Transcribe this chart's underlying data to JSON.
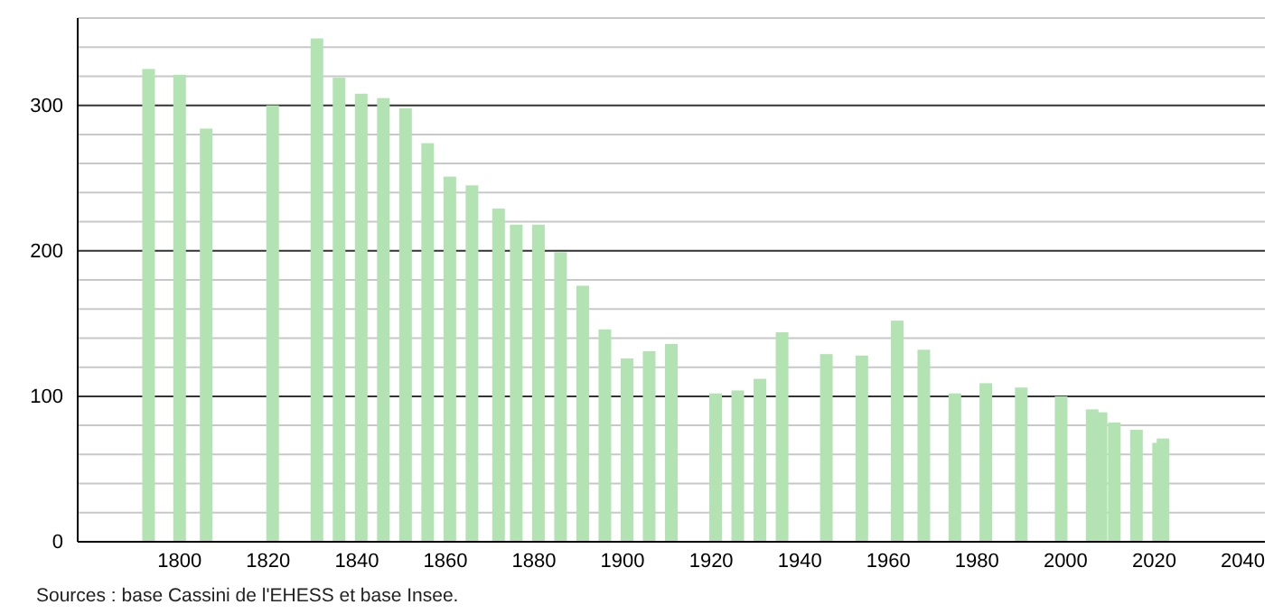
{
  "chart_data": {
    "type": "bar",
    "color": "#b3e3b3",
    "x": [
      1793,
      1800,
      1806,
      1821,
      1831,
      1836,
      1841,
      1846,
      1851,
      1856,
      1861,
      1866,
      1872,
      1876,
      1881,
      1886,
      1891,
      1896,
      1901,
      1906,
      1911,
      1921,
      1926,
      1931,
      1936,
      1946,
      1954,
      1962,
      1968,
      1975,
      1982,
      1990,
      1999,
      2006,
      2008,
      2011,
      2016,
      2021,
      2022
    ],
    "values": [
      325,
      321,
      284,
      300,
      346,
      319,
      308,
      305,
      298,
      274,
      251,
      245,
      229,
      218,
      218,
      199,
      176,
      146,
      126,
      131,
      136,
      102,
      104,
      112,
      144,
      129,
      128,
      152,
      132,
      102,
      109,
      106,
      100,
      91,
      89,
      82,
      77,
      68,
      71
    ],
    "xlim": [
      1777,
      2045
    ],
    "xticks": [
      1800,
      1820,
      1840,
      1860,
      1880,
      1900,
      1920,
      1940,
      1960,
      1980,
      2000,
      2020,
      2040
    ],
    "ylim": [
      0,
      360
    ],
    "yticks": [
      0,
      {
        "value": 20,
        "label": null
      },
      {
        "value": 40,
        "label": null
      },
      {
        "value": 60,
        "label": null
      },
      {
        "value": 80,
        "label": null
      },
      100,
      {
        "value": 120,
        "label": null
      },
      {
        "value": 140,
        "label": null
      },
      {
        "value": 160,
        "label": null
      },
      {
        "value": 180,
        "label": null
      },
      200,
      {
        "value": 220,
        "label": null
      },
      {
        "value": 240,
        "label": null
      },
      {
        "value": 260,
        "label": null
      },
      {
        "value": 280,
        "label": null
      },
      300,
      {
        "value": 320,
        "label": null
      },
      {
        "value": 340,
        "label": null
      },
      {
        "value": 360,
        "label": null
      }
    ],
    "grid": "y",
    "annotations": [
      "Sources : base Cassini de l'EHESS et base Insee."
    ]
  }
}
